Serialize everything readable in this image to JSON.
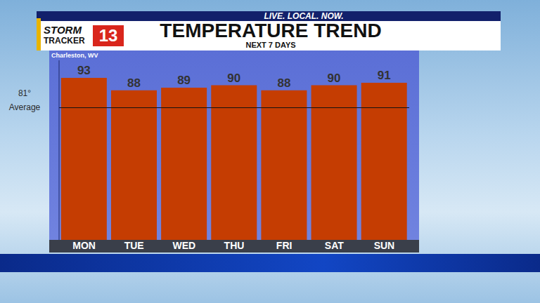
{
  "header": {
    "tagline": "LIVE. LOCAL. NOW.",
    "logo": [
      "STORM",
      "TRACKER",
      "13"
    ]
  },
  "chart_data": {
    "type": "bar",
    "title": "TEMPERATURE TREND",
    "subtitle": "NEXT 7 DAYS",
    "location": "Charleston, WV",
    "categories": [
      "MON",
      "TUE",
      "WED",
      "THU",
      "FRI",
      "SAT",
      "SUN"
    ],
    "values": [
      93,
      88,
      89,
      90,
      88,
      90,
      91
    ],
    "color": "#c53d02",
    "ylim": [
      28,
      100
    ],
    "data_labels": true,
    "tick_labels": "x",
    "grid": false,
    "average": {
      "value": 81,
      "label": "81°",
      "text": "Average"
    }
  }
}
